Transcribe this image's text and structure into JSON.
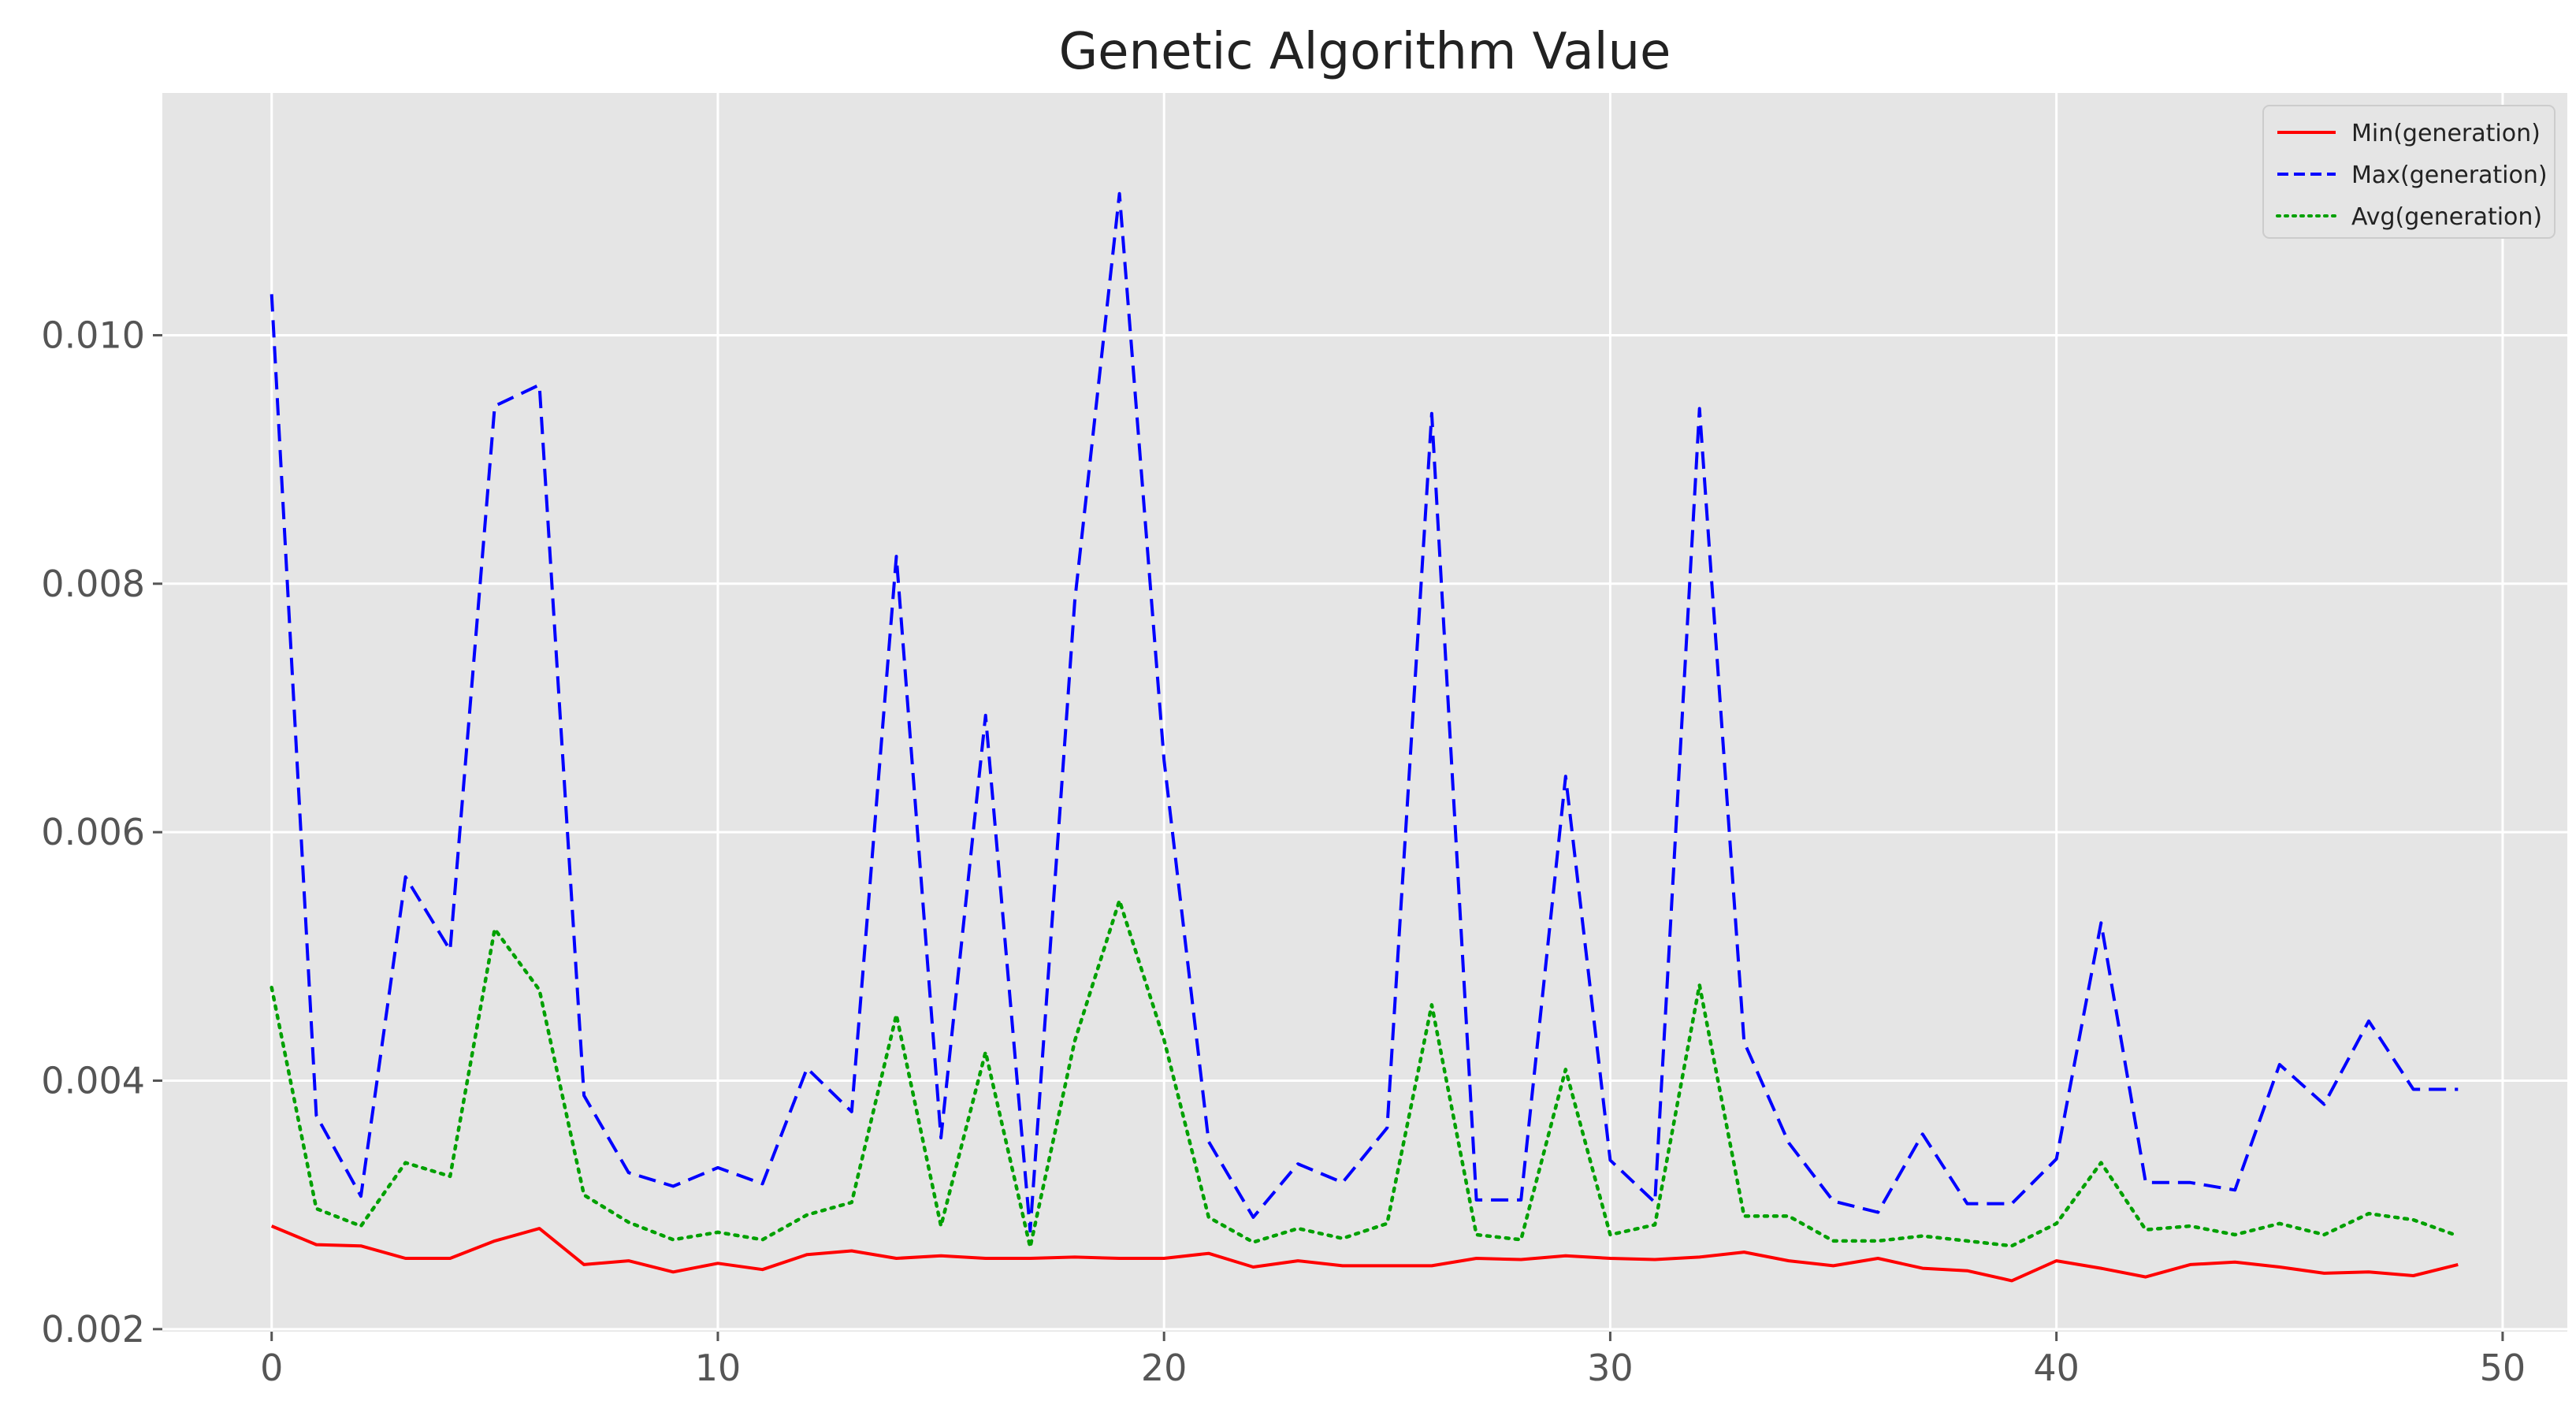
{
  "chart_data": {
    "type": "line",
    "title": "Genetic Algorithm Value",
    "xlabel": "",
    "ylabel": "",
    "xlim": [
      -2.45,
      51.45
    ],
    "ylim": [
      0.00198,
      0.01195
    ],
    "xticks": [
      0,
      10,
      20,
      30,
      40,
      50
    ],
    "xtick_labels": [
      "0",
      "10",
      "20",
      "30",
      "40",
      "50"
    ],
    "yticks": [
      0.002,
      0.004,
      0.006,
      0.008,
      0.01
    ],
    "ytick_labels": [
      "0.002",
      "0.004",
      "0.006",
      "0.008",
      "0.010"
    ],
    "grid": true,
    "legend_position": "top-right",
    "x": [
      0,
      1,
      2,
      3,
      4,
      5,
      6,
      7,
      8,
      9,
      10,
      11,
      12,
      13,
      14,
      15,
      16,
      17,
      18,
      19,
      20,
      21,
      22,
      23,
      24,
      25,
      26,
      27,
      28,
      29,
      30,
      31,
      32,
      33,
      34,
      35,
      36,
      37,
      38,
      39,
      40,
      41,
      42,
      43,
      44,
      45,
      46,
      47,
      48,
      49
    ],
    "series": [
      {
        "name": "Min(generation)",
        "color": "#ff0000",
        "linestyle": "solid",
        "values": [
          0.00283,
          0.00268,
          0.00267,
          0.00257,
          0.00257,
          0.00271,
          0.00281,
          0.00252,
          0.00255,
          0.00246,
          0.00253,
          0.00248,
          0.0026,
          0.00263,
          0.00257,
          0.00259,
          0.00257,
          0.00257,
          0.00258,
          0.00257,
          0.00257,
          0.00261,
          0.0025,
          0.00255,
          0.00251,
          0.00251,
          0.00251,
          0.00257,
          0.00256,
          0.00259,
          0.00257,
          0.00256,
          0.00258,
          0.00262,
          0.00255,
          0.00251,
          0.00257,
          0.00249,
          0.00247,
          0.00239,
          0.00255,
          0.00249,
          0.00242,
          0.00252,
          0.00254,
          0.0025,
          0.00245,
          0.00246,
          0.00243,
          0.00252
        ]
      },
      {
        "name": "Max(generation)",
        "color": "#0000ff",
        "linestyle": "dashed",
        "values": [
          0.01033,
          0.00372,
          0.00307,
          0.00564,
          0.00505,
          0.00943,
          0.0096,
          0.00388,
          0.00326,
          0.00315,
          0.0033,
          0.00317,
          0.0041,
          0.00375,
          0.00822,
          0.00354,
          0.00694,
          0.00279,
          0.00786,
          0.01114,
          0.00658,
          0.00351,
          0.0029,
          0.00333,
          0.00318,
          0.00362,
          0.00937,
          0.00304,
          0.00304,
          0.00645,
          0.00336,
          0.00302,
          0.00941,
          0.00431,
          0.0035,
          0.00303,
          0.00294,
          0.00357,
          0.00301,
          0.00301,
          0.00337,
          0.00527,
          0.00318,
          0.00318,
          0.00312,
          0.00413,
          0.00381,
          0.00448,
          0.00393,
          0.00393
        ]
      },
      {
        "name": "Avg(generation)",
        "color": "#00a000",
        "linestyle": "dotted",
        "values": [
          0.00475,
          0.00297,
          0.00283,
          0.00334,
          0.00323,
          0.00522,
          0.00473,
          0.00308,
          0.00286,
          0.00272,
          0.00278,
          0.00272,
          0.00292,
          0.00302,
          0.00453,
          0.00283,
          0.00423,
          0.00266,
          0.00432,
          0.00545,
          0.00433,
          0.0029,
          0.0027,
          0.00281,
          0.00273,
          0.00285,
          0.00461,
          0.00276,
          0.00272,
          0.00409,
          0.00276,
          0.00284,
          0.00477,
          0.00291,
          0.00291,
          0.00271,
          0.00271,
          0.00275,
          0.00271,
          0.00267,
          0.00285,
          0.00334,
          0.0028,
          0.00283,
          0.00276,
          0.00285,
          0.00276,
          0.00293,
          0.00288,
          0.00275
        ]
      }
    ]
  }
}
